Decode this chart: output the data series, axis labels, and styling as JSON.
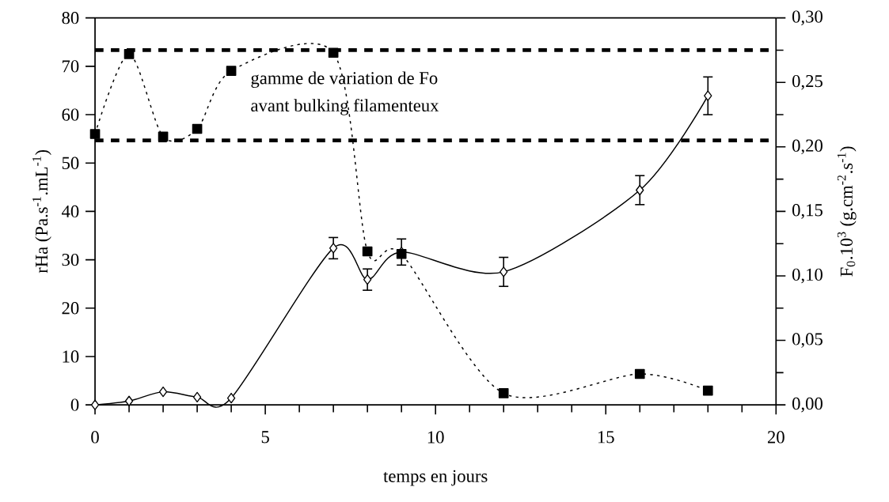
{
  "chart_data": {
    "type": "line",
    "xlabel": "temps en jours",
    "ylabel": "rHa (Pa.s$^{-1}$.mL$^{-1}$)",
    "y2label": "F$_{0}$.10$^{3}$ (g.cm$^{-2}$.s$^{-1}$)",
    "x": [
      0,
      1,
      2,
      3,
      4,
      7,
      8,
      9,
      12,
      16,
      18
    ],
    "series": [
      {
        "color": "#000000",
        "marker": "diamond",
        "line_style": "solid",
        "values": [
          0,
          0.8,
          2.7,
          1.6,
          1.4,
          32.4,
          25.9,
          31.6,
          27.5,
          44.4,
          63.9
        ],
        "errors": [
          null,
          null,
          null,
          null,
          null,
          2.2,
          2.2,
          2.7,
          3.0,
          3.0,
          3.9
        ]
      },
      {
        "color": "#000000",
        "marker": "square",
        "line_style": "dotted",
        "axis": "y2",
        "values": [
          0.21,
          0.272,
          0.208,
          0.214,
          0.259,
          0.273,
          0.119,
          0.117,
          0.009,
          0.024,
          0.011
        ]
      }
    ],
    "xlim": [
      0,
      20
    ],
    "xticks": [
      0,
      5,
      10,
      15,
      20
    ],
    "ylim": [
      0,
      80
    ],
    "yticks": [
      0,
      10,
      20,
      30,
      40,
      50,
      60,
      70,
      80
    ],
    "y2lim": [
      0,
      0.3
    ],
    "y2ticks": [
      {
        "value": 0,
        "label": "0,00"
      },
      {
        "value": 0.05,
        "label": "0,05"
      },
      {
        "value": 0.1,
        "label": "0,10"
      },
      {
        "value": 0.15,
        "label": "0,15"
      },
      {
        "value": 0.2,
        "label": "0,20"
      },
      {
        "value": 0.25,
        "label": "0,25"
      },
      {
        "value": 0.3,
        "label": "0,30"
      }
    ],
    "ref_lines": [
      {
        "axis": "y2",
        "value": 0.275,
        "line_style": "dashed"
      },
      {
        "axis": "y2",
        "value": 0.205,
        "line_style": "dashed"
      }
    ],
    "annotations": [
      "gamme de variation de Fo avant bulking filamenteux"
    ],
    "grid": false
  }
}
